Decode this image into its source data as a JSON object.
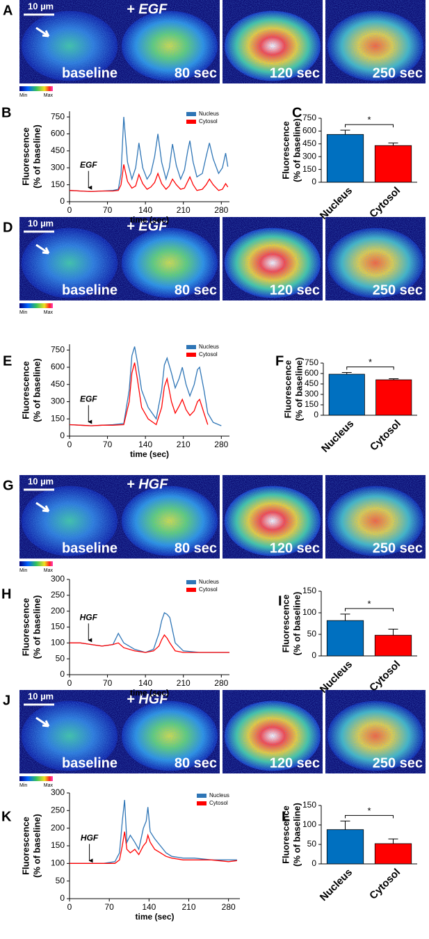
{
  "image_rows": [
    {
      "letter": "A",
      "scale": "10 µm",
      "labels": [
        "baseline",
        "+ EGF",
        "80 sec",
        "120 sec",
        "250 sec"
      ],
      "colorbar": [
        "Min",
        "Max"
      ]
    },
    {
      "letter": "D",
      "scale": "10 µm",
      "labels": [
        "baseline",
        "+ EGF",
        "80 sec",
        "120 sec",
        "250 sec"
      ],
      "colorbar": [
        "Min",
        "Max"
      ]
    },
    {
      "letter": "G",
      "scale": "10 µm",
      "labels": [
        "baseline",
        "+ HGF",
        "80 sec",
        "120 sec",
        "250 sec"
      ],
      "colorbar": [
        "Min",
        "Max"
      ]
    },
    {
      "letter": "J",
      "scale": "10 µm",
      "labels": [
        "baseline",
        "+ HGF",
        "80 sec",
        "120 sec",
        "250 sec"
      ],
      "colorbar": [
        "Min",
        "Max"
      ]
    }
  ],
  "chart_data": [
    {
      "type": "line",
      "letter": "B",
      "xlabel": "time (sec)",
      "ylabel": [
        "Fluorescence",
        "(% of baseline)"
      ],
      "annotation": {
        "text": "EGF",
        "x": 35
      },
      "x": [
        0,
        20,
        40,
        60,
        80,
        90,
        95,
        100,
        107,
        115,
        122,
        128,
        135,
        143,
        150,
        157,
        163,
        170,
        178,
        184,
        190,
        197,
        205,
        212,
        218,
        222,
        228,
        235,
        245,
        252,
        258,
        265,
        275,
        282,
        288,
        292
      ],
      "series": [
        {
          "name": "Nucleus",
          "color": "#2e75b6",
          "values": [
            100,
            95,
            90,
            95,
            100,
            110,
            250,
            750,
            350,
            200,
            300,
            520,
            300,
            200,
            250,
            400,
            600,
            350,
            200,
            300,
            510,
            320,
            200,
            280,
            450,
            540,
            350,
            220,
            250,
            400,
            520,
            380,
            250,
            300,
            430,
            310
          ]
        },
        {
          "name": "Cytosol",
          "color": "#ff0000",
          "values": [
            100,
            95,
            90,
            95,
            95,
            100,
            150,
            330,
            180,
            120,
            140,
            240,
            160,
            110,
            130,
            170,
            250,
            160,
            110,
            140,
            200,
            150,
            110,
            120,
            180,
            220,
            150,
            100,
            110,
            150,
            200,
            150,
            100,
            110,
            160,
            130
          ]
        }
      ],
      "xlim": [
        0,
        295
      ],
      "xticks": [
        0,
        70,
        140,
        210,
        280
      ],
      "ylim": [
        0,
        800
      ],
      "yticks": [
        0,
        150,
        300,
        450,
        600,
        750
      ],
      "legend": "top-right"
    },
    {
      "type": "bar",
      "letter": "C",
      "ylabel": [
        "Fluorescence",
        "(% of baseline)"
      ],
      "categories": [
        "Nucleus",
        "Cytosol"
      ],
      "values": [
        560,
        430
      ],
      "errors": [
        50,
        30
      ],
      "colors": [
        "#0070c0",
        "#ff0000"
      ],
      "annotation": "*",
      "ylim": [
        0,
        750
      ],
      "yticks": [
        0,
        150,
        300,
        450,
        600,
        750
      ]
    },
    {
      "type": "line",
      "letter": "E",
      "xlabel": "time (sec)",
      "ylabel": [
        "Fluorescence",
        "(% of baseline)"
      ],
      "annotation": {
        "text": "EGF",
        "x": 35
      },
      "x": [
        0,
        20,
        40,
        60,
        80,
        100,
        110,
        115,
        120,
        125,
        133,
        145,
        160,
        170,
        175,
        180,
        188,
        195,
        202,
        208,
        215,
        222,
        230,
        236,
        240,
        248,
        255,
        265,
        275,
        280
      ],
      "series": [
        {
          "name": "Nucleus",
          "color": "#2e75b6",
          "values": [
            100,
            95,
            90,
            95,
            100,
            110,
            400,
            700,
            780,
            650,
            400,
            250,
            150,
            400,
            620,
            680,
            550,
            420,
            500,
            600,
            450,
            350,
            450,
            580,
            600,
            400,
            200,
            120,
            100,
            90
          ]
        },
        {
          "name": "Cytosol",
          "color": "#ff0000",
          "values": [
            100,
            95,
            90,
            95,
            95,
            100,
            300,
            550,
            640,
            500,
            250,
            150,
            100,
            250,
            430,
            500,
            300,
            200,
            260,
            320,
            230,
            180,
            220,
            300,
            320,
            200,
            100,
            null,
            null,
            null
          ]
        }
      ],
      "xlim": [
        0,
        295
      ],
      "xticks": [
        0,
        70,
        140,
        210,
        280
      ],
      "ylim": [
        0,
        800
      ],
      "yticks": [
        0,
        150,
        300,
        450,
        600,
        750
      ],
      "legend": "top-right"
    },
    {
      "type": "bar",
      "letter": "F",
      "ylabel": [
        "Fluorescence",
        "(% of baseline)"
      ],
      "categories": [
        "Nucleus",
        "Cytosol"
      ],
      "values": [
        590,
        510
      ],
      "errors": [
        25,
        15
      ],
      "colors": [
        "#0070c0",
        "#ff0000"
      ],
      "annotation": "*",
      "ylim": [
        0,
        750
      ],
      "yticks": [
        0,
        150,
        300,
        450,
        600,
        750
      ]
    },
    {
      "type": "line",
      "letter": "H",
      "xlabel": "time (sec)",
      "ylabel": [
        "Fluorescence",
        "(% of baseline)"
      ],
      "annotation": {
        "text": "HGF",
        "x": 35
      },
      "x": [
        0,
        20,
        40,
        60,
        80,
        90,
        100,
        120,
        140,
        155,
        165,
        170,
        175,
        180,
        185,
        195,
        210,
        240,
        270,
        295
      ],
      "series": [
        {
          "name": "Nucleus",
          "color": "#2e75b6",
          "values": [
            100,
            100,
            95,
            90,
            95,
            130,
            100,
            80,
            70,
            80,
            130,
            170,
            195,
            190,
            180,
            100,
            75,
            70,
            70,
            70
          ]
        },
        {
          "name": "Cytosol",
          "color": "#ff0000",
          "values": [
            100,
            100,
            95,
            90,
            95,
            100,
            85,
            75,
            70,
            75,
            90,
            110,
            125,
            115,
            100,
            75,
            70,
            70,
            70,
            70
          ]
        }
      ],
      "xlim": [
        0,
        295
      ],
      "xticks": [
        0,
        70,
        140,
        210,
        280
      ],
      "ylim": [
        0,
        300
      ],
      "yticks": [
        0,
        50,
        100,
        150,
        200,
        250,
        300
      ],
      "legend": "top-right"
    },
    {
      "type": "bar",
      "letter": "I",
      "ylabel": [
        "Fluorescence",
        "(% of baseline)"
      ],
      "categories": [
        "Nucleus",
        "Cytosol"
      ],
      "values": [
        82,
        48
      ],
      "errors": [
        15,
        14
      ],
      "colors": [
        "#0070c0",
        "#ff0000"
      ],
      "annotation": "*",
      "ylim": [
        0,
        150
      ],
      "yticks": [
        0,
        50,
        100,
        150
      ]
    },
    {
      "type": "line",
      "letter": "K",
      "xlabel": "time (sec)",
      "ylabel": [
        "Fluorescence",
        "(% of baseline)"
      ],
      "annotation": {
        "text": "HGF",
        "x": 35
      },
      "x": [
        0,
        20,
        40,
        60,
        80,
        88,
        93,
        97,
        101,
        107,
        115,
        122,
        130,
        135,
        138,
        142,
        150,
        160,
        170,
        180,
        200,
        220,
        250,
        280,
        295
      ],
      "series": [
        {
          "name": "Nucleus",
          "color": "#2e75b6",
          "values": [
            100,
            100,
            100,
            100,
            105,
            130,
            220,
            280,
            160,
            180,
            160,
            140,
            200,
            220,
            260,
            190,
            170,
            150,
            130,
            120,
            115,
            115,
            110,
            110,
            110
          ]
        },
        {
          "name": "Cytosol",
          "color": "#ff0000",
          "values": [
            100,
            100,
            100,
            100,
            100,
            110,
            150,
            190,
            140,
            130,
            140,
            125,
            150,
            160,
            180,
            160,
            140,
            130,
            120,
            115,
            110,
            110,
            110,
            105,
            108
          ]
        }
      ],
      "xlim": [
        0,
        300
      ],
      "xticks": [
        0,
        70,
        140,
        210,
        280
      ],
      "ylim": [
        0,
        300
      ],
      "yticks": [
        0,
        50,
        100,
        150,
        200,
        250,
        300
      ],
      "legend": "top-right"
    },
    {
      "type": "bar",
      "letter": "L",
      "ylabel": [
        "Fluorescence",
        "(% of baseline)"
      ],
      "categories": [
        "Nucleus",
        "Cytosol"
      ],
      "values": [
        88,
        52
      ],
      "errors": [
        22,
        12
      ],
      "colors": [
        "#0070c0",
        "#ff0000"
      ],
      "annotation": "*",
      "ylim": [
        0,
        150
      ],
      "yticks": [
        0,
        50,
        100,
        150
      ]
    }
  ]
}
